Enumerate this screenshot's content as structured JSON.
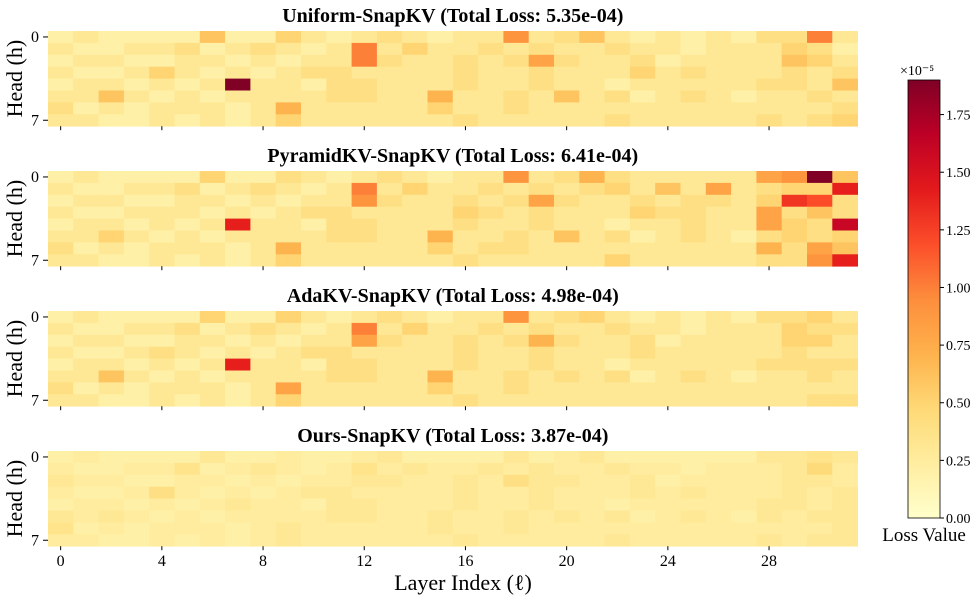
{
  "chart_data": {
    "type": "heatmap",
    "xlabel": "Layer Index (ℓ)",
    "ylabel": "Head (h)",
    "x_ticks": [
      "0",
      "4",
      "8",
      "12",
      "16",
      "20",
      "24",
      "28"
    ],
    "y_ticks": [
      "0",
      "7"
    ],
    "colormap": "YlOrRd",
    "colorbar": {
      "label": "Loss Value",
      "multiplier": "×10⁻⁵",
      "ticks": [
        "0.00",
        "0.25",
        "0.50",
        "0.75",
        "1.00",
        "1.25",
        "1.50",
        "1.75"
      ],
      "range": [
        0,
        1.9
      ],
      "unit_scale": "1e-5"
    },
    "panels": [
      {
        "title": "Uniform-SnapKV (Total Loss: 5.35e-04)",
        "values": [
          [
            0.2,
            0.3,
            0.2,
            0.2,
            0.2,
            0.2,
            0.6,
            0.2,
            0.2,
            0.5,
            0.3,
            0.2,
            0.3,
            0.4,
            0.3,
            0.2,
            0.3,
            0.3,
            0.9,
            0.3,
            0.4,
            0.6,
            0.3,
            0.2,
            0.3,
            0.2,
            0.3,
            0.2,
            0.4,
            0.4,
            1.0,
            0.3
          ],
          [
            0.3,
            0.2,
            0.2,
            0.3,
            0.3,
            0.4,
            0.2,
            0.3,
            0.4,
            0.3,
            0.2,
            0.3,
            1.0,
            0.3,
            0.5,
            0.3,
            0.3,
            0.4,
            0.3,
            0.4,
            0.3,
            0.3,
            0.4,
            0.3,
            0.3,
            0.2,
            0.3,
            0.3,
            0.3,
            0.5,
            0.4,
            0.2
          ],
          [
            0.2,
            0.3,
            0.3,
            0.2,
            0.2,
            0.3,
            0.3,
            0.2,
            0.3,
            0.2,
            0.3,
            0.3,
            1.0,
            0.4,
            0.3,
            0.3,
            0.4,
            0.3,
            0.4,
            0.8,
            0.4,
            0.3,
            0.3,
            0.4,
            0.2,
            0.3,
            0.3,
            0.3,
            0.3,
            0.6,
            0.5,
            0.3
          ],
          [
            0.3,
            0.2,
            0.2,
            0.3,
            0.5,
            0.3,
            0.2,
            0.3,
            0.2,
            0.3,
            0.4,
            0.4,
            0.3,
            0.3,
            0.3,
            0.3,
            0.4,
            0.3,
            0.3,
            0.4,
            0.3,
            0.3,
            0.3,
            0.5,
            0.3,
            0.4,
            0.3,
            0.3,
            0.3,
            0.4,
            0.3,
            0.4
          ],
          [
            0.2,
            0.3,
            0.3,
            0.2,
            0.3,
            0.2,
            0.3,
            1.9,
            0.3,
            0.3,
            0.2,
            0.4,
            0.4,
            0.3,
            0.3,
            0.3,
            0.4,
            0.3,
            0.3,
            0.4,
            0.3,
            0.3,
            0.2,
            0.3,
            0.3,
            0.3,
            0.3,
            0.3,
            0.4,
            0.4,
            0.3,
            0.6
          ],
          [
            0.3,
            0.3,
            0.6,
            0.3,
            0.2,
            0.3,
            0.2,
            0.3,
            0.3,
            0.3,
            0.3,
            0.4,
            0.4,
            0.3,
            0.3,
            0.7,
            0.3,
            0.3,
            0.4,
            0.3,
            0.6,
            0.3,
            0.4,
            0.2,
            0.3,
            0.4,
            0.3,
            0.2,
            0.3,
            0.3,
            0.4,
            0.3
          ],
          [
            0.4,
            0.2,
            0.3,
            0.2,
            0.3,
            0.3,
            0.3,
            0.2,
            0.3,
            0.7,
            0.3,
            0.3,
            0.3,
            0.3,
            0.3,
            0.5,
            0.3,
            0.3,
            0.4,
            0.3,
            0.3,
            0.3,
            0.3,
            0.3,
            0.3,
            0.3,
            0.3,
            0.3,
            0.3,
            0.3,
            0.3,
            0.4
          ],
          [
            0.3,
            0.3,
            0.2,
            0.2,
            0.3,
            0.2,
            0.3,
            0.2,
            0.3,
            0.5,
            0.3,
            0.3,
            0.3,
            0.3,
            0.3,
            0.3,
            0.4,
            0.3,
            0.3,
            0.3,
            0.3,
            0.3,
            0.4,
            0.3,
            0.3,
            0.3,
            0.3,
            0.3,
            0.4,
            0.3,
            0.4,
            0.5
          ]
        ]
      },
      {
        "title": "PyramidKV-SnapKV (Total Loss: 6.41e-04)",
        "values": [
          [
            0.2,
            0.3,
            0.2,
            0.2,
            0.2,
            0.2,
            0.5,
            0.2,
            0.2,
            0.4,
            0.3,
            0.2,
            0.3,
            0.4,
            0.3,
            0.2,
            0.3,
            0.3,
            0.9,
            0.3,
            0.4,
            0.7,
            0.4,
            0.3,
            0.3,
            0.3,
            0.3,
            0.3,
            0.8,
            0.9,
            1.9,
            0.6
          ],
          [
            0.3,
            0.2,
            0.2,
            0.3,
            0.3,
            0.4,
            0.2,
            0.3,
            0.4,
            0.3,
            0.2,
            0.3,
            1.0,
            0.3,
            0.5,
            0.3,
            0.3,
            0.4,
            0.3,
            0.4,
            0.3,
            0.4,
            0.5,
            0.3,
            0.6,
            0.3,
            0.8,
            0.3,
            0.4,
            0.5,
            0.5,
            1.4
          ],
          [
            0.2,
            0.3,
            0.3,
            0.2,
            0.2,
            0.3,
            0.3,
            0.2,
            0.3,
            0.2,
            0.3,
            0.3,
            0.9,
            0.4,
            0.3,
            0.3,
            0.4,
            0.3,
            0.4,
            0.8,
            0.4,
            0.3,
            0.3,
            0.4,
            0.3,
            0.4,
            0.4,
            0.3,
            0.5,
            1.3,
            1.2,
            0.4
          ],
          [
            0.3,
            0.2,
            0.2,
            0.3,
            0.3,
            0.3,
            0.2,
            0.3,
            0.2,
            0.3,
            0.4,
            0.4,
            0.3,
            0.3,
            0.3,
            0.3,
            0.5,
            0.4,
            0.3,
            0.4,
            0.3,
            0.3,
            0.3,
            0.5,
            0.4,
            0.4,
            0.3,
            0.3,
            0.8,
            0.4,
            0.6,
            0.4
          ],
          [
            0.2,
            0.3,
            0.3,
            0.2,
            0.3,
            0.2,
            0.3,
            1.4,
            0.3,
            0.3,
            0.2,
            0.4,
            0.4,
            0.3,
            0.3,
            0.3,
            0.4,
            0.3,
            0.3,
            0.4,
            0.3,
            0.3,
            0.2,
            0.3,
            0.3,
            0.4,
            0.3,
            0.3,
            0.8,
            0.5,
            0.4,
            1.6
          ],
          [
            0.3,
            0.3,
            0.5,
            0.3,
            0.2,
            0.3,
            0.2,
            0.3,
            0.3,
            0.3,
            0.3,
            0.4,
            0.4,
            0.3,
            0.3,
            0.7,
            0.3,
            0.3,
            0.4,
            0.3,
            0.6,
            0.3,
            0.4,
            0.2,
            0.3,
            0.4,
            0.3,
            0.2,
            0.4,
            0.5,
            0.4,
            0.5
          ],
          [
            0.4,
            0.2,
            0.3,
            0.2,
            0.3,
            0.3,
            0.3,
            0.2,
            0.3,
            0.7,
            0.3,
            0.3,
            0.3,
            0.3,
            0.3,
            0.5,
            0.3,
            0.4,
            0.4,
            0.3,
            0.3,
            0.3,
            0.3,
            0.3,
            0.3,
            0.3,
            0.3,
            0.3,
            0.7,
            0.4,
            0.8,
            0.6
          ],
          [
            0.3,
            0.3,
            0.2,
            0.2,
            0.3,
            0.2,
            0.3,
            0.2,
            0.3,
            0.5,
            0.3,
            0.3,
            0.3,
            0.3,
            0.3,
            0.3,
            0.4,
            0.3,
            0.3,
            0.3,
            0.3,
            0.3,
            0.5,
            0.3,
            0.3,
            0.3,
            0.3,
            0.3,
            0.4,
            0.4,
            0.9,
            1.4
          ]
        ]
      },
      {
        "title": "AdaKV-SnapKV (Total Loss: 4.98e-04)",
        "values": [
          [
            0.2,
            0.3,
            0.2,
            0.2,
            0.2,
            0.2,
            0.5,
            0.2,
            0.2,
            0.5,
            0.3,
            0.2,
            0.3,
            0.4,
            0.3,
            0.2,
            0.3,
            0.3,
            0.9,
            0.3,
            0.4,
            0.5,
            0.3,
            0.2,
            0.3,
            0.2,
            0.3,
            0.2,
            0.4,
            0.4,
            0.5,
            0.3
          ],
          [
            0.3,
            0.2,
            0.2,
            0.3,
            0.3,
            0.4,
            0.2,
            0.3,
            0.4,
            0.3,
            0.2,
            0.3,
            1.0,
            0.3,
            0.5,
            0.3,
            0.3,
            0.4,
            0.3,
            0.4,
            0.3,
            0.3,
            0.4,
            0.3,
            0.3,
            0.2,
            0.3,
            0.3,
            0.3,
            0.5,
            0.4,
            0.4
          ],
          [
            0.2,
            0.3,
            0.3,
            0.2,
            0.2,
            0.3,
            0.3,
            0.2,
            0.3,
            0.2,
            0.3,
            0.3,
            0.8,
            0.4,
            0.3,
            0.3,
            0.4,
            0.3,
            0.4,
            0.7,
            0.4,
            0.3,
            0.3,
            0.4,
            0.2,
            0.3,
            0.3,
            0.3,
            0.3,
            0.5,
            0.5,
            0.3
          ],
          [
            0.3,
            0.2,
            0.2,
            0.3,
            0.4,
            0.3,
            0.2,
            0.3,
            0.2,
            0.3,
            0.4,
            0.4,
            0.3,
            0.3,
            0.3,
            0.3,
            0.4,
            0.3,
            0.3,
            0.4,
            0.3,
            0.3,
            0.3,
            0.4,
            0.3,
            0.3,
            0.3,
            0.3,
            0.3,
            0.4,
            0.3,
            0.3
          ],
          [
            0.2,
            0.3,
            0.3,
            0.2,
            0.3,
            0.2,
            0.3,
            1.4,
            0.3,
            0.3,
            0.2,
            0.4,
            0.4,
            0.3,
            0.3,
            0.3,
            0.4,
            0.3,
            0.3,
            0.4,
            0.3,
            0.3,
            0.2,
            0.3,
            0.3,
            0.3,
            0.3,
            0.3,
            0.4,
            0.4,
            0.4,
            0.4
          ],
          [
            0.3,
            0.3,
            0.6,
            0.3,
            0.2,
            0.3,
            0.2,
            0.3,
            0.3,
            0.3,
            0.3,
            0.4,
            0.4,
            0.3,
            0.3,
            0.7,
            0.3,
            0.3,
            0.4,
            0.3,
            0.4,
            0.3,
            0.4,
            0.2,
            0.3,
            0.4,
            0.3,
            0.2,
            0.3,
            0.3,
            0.4,
            0.3
          ],
          [
            0.4,
            0.2,
            0.3,
            0.2,
            0.3,
            0.3,
            0.3,
            0.2,
            0.3,
            0.8,
            0.3,
            0.3,
            0.3,
            0.3,
            0.3,
            0.5,
            0.3,
            0.3,
            0.4,
            0.3,
            0.3,
            0.3,
            0.3,
            0.3,
            0.3,
            0.3,
            0.3,
            0.3,
            0.3,
            0.3,
            0.3,
            0.3
          ],
          [
            0.3,
            0.3,
            0.2,
            0.2,
            0.3,
            0.2,
            0.3,
            0.2,
            0.3,
            0.5,
            0.3,
            0.3,
            0.3,
            0.3,
            0.3,
            0.3,
            0.4,
            0.3,
            0.3,
            0.3,
            0.3,
            0.3,
            0.3,
            0.3,
            0.3,
            0.3,
            0.3,
            0.3,
            0.3,
            0.3,
            0.4,
            0.4
          ]
        ]
      },
      {
        "title": "Ours-SnapKV (Total Loss: 3.87e-04)",
        "values": [
          [
            0.2,
            0.25,
            0.2,
            0.2,
            0.2,
            0.2,
            0.3,
            0.2,
            0.2,
            0.25,
            0.2,
            0.2,
            0.25,
            0.3,
            0.2,
            0.2,
            0.2,
            0.2,
            0.3,
            0.2,
            0.25,
            0.3,
            0.2,
            0.2,
            0.2,
            0.2,
            0.2,
            0.2,
            0.3,
            0.3,
            0.35,
            0.3
          ],
          [
            0.25,
            0.2,
            0.2,
            0.25,
            0.25,
            0.35,
            0.2,
            0.25,
            0.3,
            0.25,
            0.2,
            0.25,
            0.35,
            0.25,
            0.3,
            0.25,
            0.25,
            0.3,
            0.25,
            0.3,
            0.25,
            0.25,
            0.3,
            0.25,
            0.25,
            0.2,
            0.25,
            0.25,
            0.25,
            0.3,
            0.45,
            0.25
          ],
          [
            0.3,
            0.25,
            0.25,
            0.2,
            0.2,
            0.25,
            0.25,
            0.2,
            0.25,
            0.2,
            0.25,
            0.25,
            0.3,
            0.3,
            0.25,
            0.25,
            0.3,
            0.25,
            0.4,
            0.3,
            0.3,
            0.25,
            0.25,
            0.3,
            0.2,
            0.25,
            0.25,
            0.25,
            0.25,
            0.3,
            0.3,
            0.25
          ],
          [
            0.25,
            0.2,
            0.2,
            0.25,
            0.4,
            0.25,
            0.2,
            0.25,
            0.2,
            0.25,
            0.3,
            0.3,
            0.25,
            0.25,
            0.25,
            0.25,
            0.3,
            0.25,
            0.25,
            0.3,
            0.25,
            0.25,
            0.25,
            0.3,
            0.25,
            0.3,
            0.25,
            0.25,
            0.25,
            0.3,
            0.25,
            0.3
          ],
          [
            0.2,
            0.25,
            0.25,
            0.2,
            0.25,
            0.2,
            0.25,
            0.3,
            0.25,
            0.25,
            0.2,
            0.3,
            0.3,
            0.25,
            0.25,
            0.25,
            0.3,
            0.25,
            0.25,
            0.3,
            0.25,
            0.25,
            0.2,
            0.25,
            0.25,
            0.25,
            0.25,
            0.25,
            0.3,
            0.3,
            0.25,
            0.3
          ],
          [
            0.3,
            0.25,
            0.3,
            0.25,
            0.2,
            0.25,
            0.2,
            0.25,
            0.25,
            0.25,
            0.25,
            0.3,
            0.3,
            0.25,
            0.25,
            0.3,
            0.25,
            0.25,
            0.3,
            0.25,
            0.3,
            0.25,
            0.3,
            0.2,
            0.25,
            0.3,
            0.25,
            0.2,
            0.3,
            0.25,
            0.3,
            0.3
          ],
          [
            0.35,
            0.2,
            0.25,
            0.2,
            0.25,
            0.25,
            0.25,
            0.2,
            0.25,
            0.3,
            0.25,
            0.25,
            0.25,
            0.25,
            0.25,
            0.3,
            0.25,
            0.25,
            0.3,
            0.25,
            0.25,
            0.25,
            0.25,
            0.25,
            0.25,
            0.25,
            0.25,
            0.25,
            0.25,
            0.25,
            0.25,
            0.3
          ],
          [
            0.25,
            0.25,
            0.2,
            0.2,
            0.25,
            0.2,
            0.25,
            0.2,
            0.25,
            0.3,
            0.25,
            0.25,
            0.25,
            0.25,
            0.25,
            0.25,
            0.3,
            0.25,
            0.25,
            0.25,
            0.25,
            0.25,
            0.3,
            0.25,
            0.25,
            0.25,
            0.25,
            0.25,
            0.3,
            0.25,
            0.3,
            0.3
          ]
        ]
      }
    ]
  }
}
